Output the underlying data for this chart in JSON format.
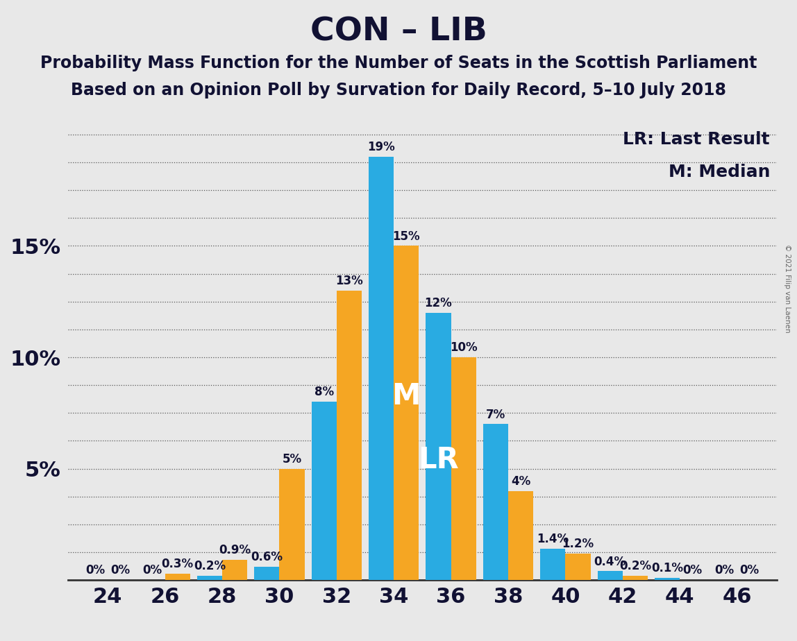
{
  "title": "CON – LIB",
  "subtitle1": "Probability Mass Function for the Number of Seats in the Scottish Parliament",
  "subtitle2": "Based on an Opinion Poll by Survation for Daily Record, 5–10 July 2018",
  "copyright": "© 2021 Filip van Laenen",
  "background_color": "#e8e8e8",
  "seats": [
    24,
    26,
    28,
    30,
    32,
    34,
    36,
    38,
    40,
    42,
    44,
    46
  ],
  "blue_values": [
    0.0,
    0.0,
    0.2,
    0.6,
    8.0,
    19.0,
    12.0,
    7.0,
    1.4,
    0.4,
    0.1,
    0.0
  ],
  "orange_values": [
    0.0,
    0.3,
    0.9,
    5.0,
    13.0,
    15.0,
    10.0,
    4.0,
    1.2,
    0.2,
    0.0,
    0.0
  ],
  "blue_labels": [
    "0%",
    "0%",
    "0.2%",
    "0.6%",
    "8%",
    "19%",
    "12%",
    "7%",
    "1.4%",
    "0.4%",
    "0.1%",
    "0%"
  ],
  "orange_labels": [
    "0%",
    "0.3%",
    "0.9%",
    "5%",
    "13%",
    "15%",
    "10%",
    "4%",
    "1.2%",
    "0.2%",
    "0%",
    "0%"
  ],
  "blue_color": "#29abe2",
  "orange_color": "#f5a623",
  "ylim_max": 21,
  "lr_bar": "blue",
  "lr_seat_idx": 6,
  "median_bar": "orange",
  "median_seat_idx": 5,
  "lr_label": "LR",
  "median_label": "M",
  "legend_lr": "LR: Last Result",
  "legend_m": "M: Median",
  "title_fontsize": 34,
  "subtitle_fontsize": 17,
  "bar_label_fontsize": 12,
  "axis_tick_fontsize": 22,
  "legend_fontsize": 18
}
